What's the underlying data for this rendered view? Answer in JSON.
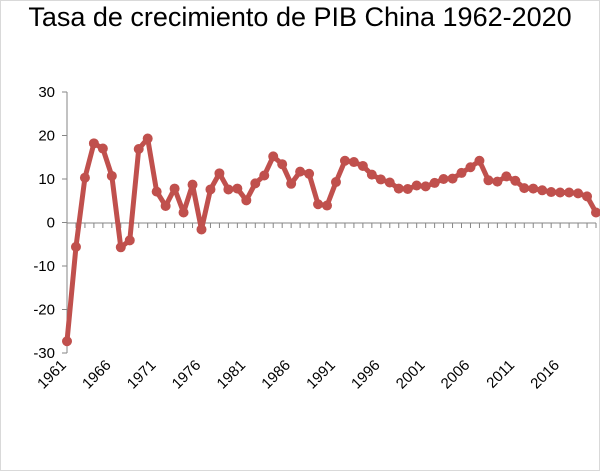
{
  "chart_data": {
    "type": "line",
    "title": "Tasa de crecimiento de PIB China 1962-2020",
    "xlabel": "",
    "ylabel": "",
    "ylim": [
      -30,
      30
    ],
    "yticks": [
      -30,
      -20,
      -10,
      0,
      10,
      20,
      30
    ],
    "xtick_labels": [
      "1961",
      "1966",
      "1971",
      "1976",
      "1981",
      "1986",
      "1991",
      "1996",
      "2001",
      "2006",
      "2011",
      "2016"
    ],
    "grid": false,
    "legend": "none",
    "series": [
      {
        "color": "#c0504d",
        "x": [
          1961,
          1962,
          1963,
          1964,
          1965,
          1966,
          1967,
          1968,
          1969,
          1970,
          1971,
          1972,
          1973,
          1974,
          1975,
          1976,
          1977,
          1978,
          1979,
          1980,
          1981,
          1982,
          1983,
          1984,
          1985,
          1986,
          1987,
          1988,
          1989,
          1990,
          1991,
          1992,
          1993,
          1994,
          1995,
          1996,
          1997,
          1998,
          1999,
          2000,
          2001,
          2002,
          2003,
          2004,
          2005,
          2006,
          2007,
          2008,
          2009,
          2010,
          2011,
          2012,
          2013,
          2014,
          2015,
          2016,
          2017,
          2018,
          2019,
          2020
        ],
        "values": [
          -27.3,
          -5.6,
          10.3,
          18.2,
          17.0,
          10.7,
          -5.7,
          -4.1,
          16.9,
          19.3,
          7.1,
          3.8,
          7.8,
          2.3,
          8.7,
          -1.6,
          7.6,
          11.3,
          7.6,
          7.8,
          5.1,
          9.0,
          10.8,
          15.2,
          13.4,
          8.9,
          11.7,
          11.2,
          4.2,
          3.9,
          9.3,
          14.2,
          13.9,
          13.0,
          11.0,
          9.9,
          9.2,
          7.8,
          7.7,
          8.5,
          8.3,
          9.1,
          10.0,
          10.1,
          11.4,
          12.7,
          14.2,
          9.7,
          9.4,
          10.6,
          9.6,
          7.9,
          7.8,
          7.4,
          7.0,
          6.9,
          6.9,
          6.7,
          6.0,
          2.3
        ]
      }
    ]
  }
}
